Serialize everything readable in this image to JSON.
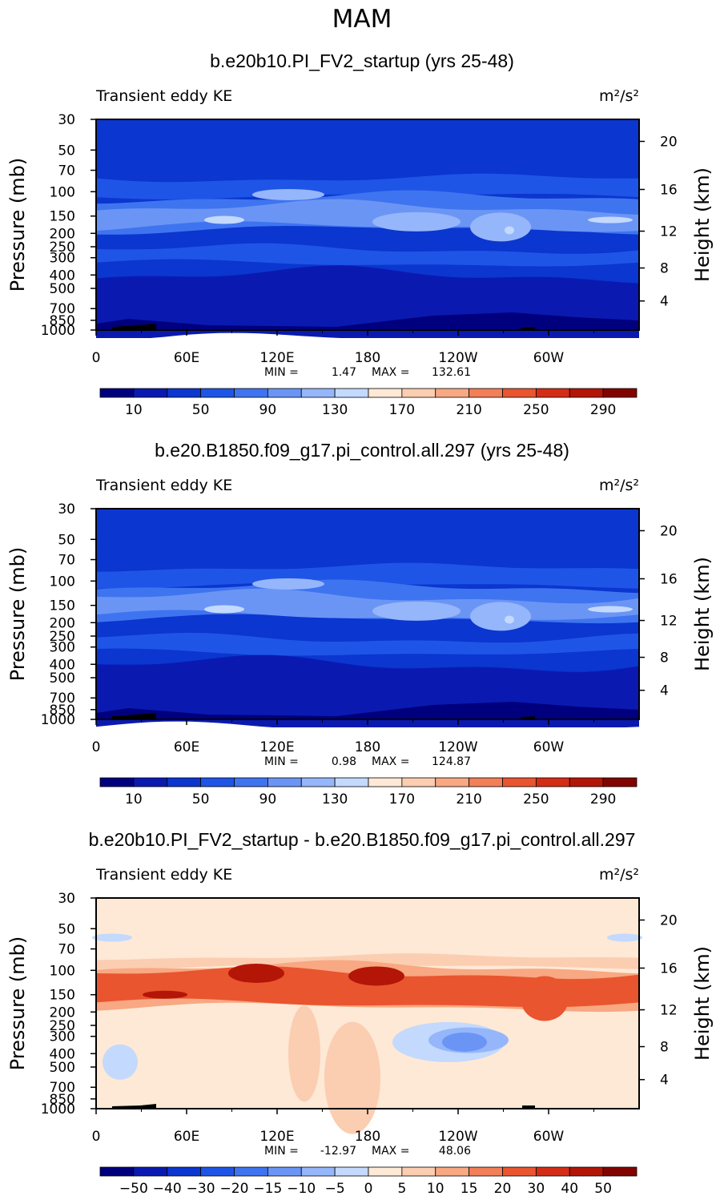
{
  "figure_title": "MAM",
  "palette_blue_red": [
    "#00007f",
    "#0a1ab0",
    "#0b36cf",
    "#1f55e6",
    "#3f74f0",
    "#6b95f5",
    "#95b6fa",
    "#c3d9fd",
    "#fde9d5",
    "#fbcdb1",
    "#f8a882",
    "#f27f57",
    "#e9552f",
    "#d42d15",
    "#b31607",
    "#820400"
  ],
  "chart_data": [
    {
      "type": "heatmap",
      "title": "b.e20b10.PI_FV2_startup (yrs 25-48)",
      "left_label": "Transient eddy KE",
      "right_label": "m²/s²",
      "ylabel": "Pressure (mb)",
      "ylabel_right": "Height (km)",
      "pressure_ticks": [
        "30",
        "50",
        "70",
        "100",
        "150",
        "200",
        "250",
        "300",
        "400",
        "500",
        "700",
        "850",
        "1000"
      ],
      "height_ticks": [
        "20",
        "16",
        "12",
        "8",
        "4"
      ],
      "lon_ticks": [
        "0",
        "60E",
        "120E",
        "180",
        "120W",
        "60W"
      ],
      "min_label": "MIN =",
      "min_value": "1.47",
      "max_label": "MAX =",
      "max_value": "132.61",
      "colorbar_labels": [
        "10",
        "50",
        "90",
        "130",
        "170",
        "210",
        "250",
        "290"
      ]
    },
    {
      "type": "heatmap",
      "title": "b.e20.B1850.f09_g17.pi_control.all.297 (yrs 25-48)",
      "left_label": "Transient eddy KE",
      "right_label": "m²/s²",
      "ylabel": "Pressure (mb)",
      "ylabel_right": "Height (km)",
      "pressure_ticks": [
        "30",
        "50",
        "70",
        "100",
        "150",
        "200",
        "250",
        "300",
        "400",
        "500",
        "700",
        "850",
        "1000"
      ],
      "height_ticks": [
        "20",
        "16",
        "12",
        "8",
        "4"
      ],
      "lon_ticks": [
        "0",
        "60E",
        "120E",
        "180",
        "120W",
        "60W"
      ],
      "min_label": "MIN =",
      "min_value": "0.98",
      "max_label": "MAX =",
      "max_value": "124.87",
      "colorbar_labels": [
        "10",
        "50",
        "90",
        "130",
        "170",
        "210",
        "250",
        "290"
      ]
    },
    {
      "type": "heatmap",
      "title": "b.e20b10.PI_FV2_startup - b.e20.B1850.f09_g17.pi_control.all.297",
      "left_label": "Transient eddy KE",
      "right_label": "m²/s²",
      "ylabel": "Pressure (mb)",
      "ylabel_right": "Height (km)",
      "pressure_ticks": [
        "30",
        "50",
        "70",
        "100",
        "150",
        "200",
        "250",
        "300",
        "400",
        "500",
        "700",
        "850",
        "1000"
      ],
      "height_ticks": [
        "20",
        "16",
        "12",
        "8",
        "4"
      ],
      "lon_ticks": [
        "0",
        "60E",
        "120E",
        "180",
        "120W",
        "60W"
      ],
      "min_label": "MIN =",
      "min_value": "-12.97",
      "max_label": "MAX =",
      "max_value": "48.06",
      "colorbar_labels": [
        "−50",
        "−40",
        "−30",
        "−20",
        "−15",
        "−10",
        "−5",
        "0",
        "5",
        "10",
        "15",
        "20",
        "30",
        "40",
        "50"
      ]
    }
  ]
}
